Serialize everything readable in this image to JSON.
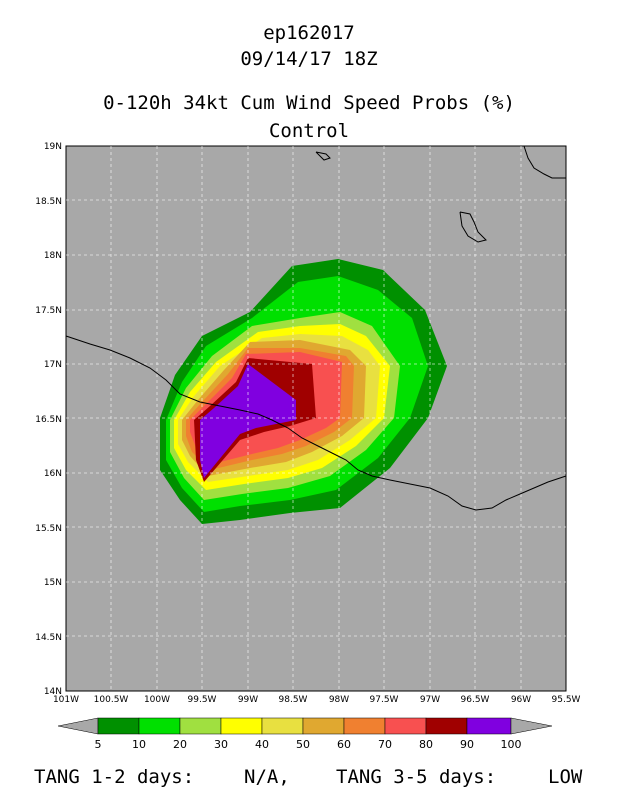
{
  "header": {
    "storm_id": "ep162017",
    "datetime": "09/14/17 18Z",
    "product": "0-120h 34kt Cum Wind Speed Probs (%)",
    "run": "Control"
  },
  "map": {
    "lat_labels": [
      "19N",
      "18.5N",
      "18N",
      "17.5N",
      "17N",
      "16.5N",
      "16N",
      "15.5N",
      "15N",
      "14.5N",
      "14N"
    ],
    "lon_labels": [
      "101W",
      "100.5W",
      "100W",
      "99.5W",
      "99W",
      "98.5W",
      "98W",
      "97.5W",
      "97W",
      "96.5W",
      "96W",
      "95.5W"
    ],
    "lat_range": [
      14,
      19
    ],
    "lon_range": [
      -101,
      -95.5
    ],
    "background_color": "#a8a8a8",
    "grid": "dashed"
  },
  "colorbar": {
    "levels": [
      "5",
      "10",
      "20",
      "30",
      "40",
      "50",
      "60",
      "70",
      "80",
      "90",
      "100"
    ],
    "colors": [
      "#009000",
      "#00e000",
      "#a0e040",
      "#ffff00",
      "#e8e040",
      "#e0a830",
      "#f08030",
      "#f85050",
      "#a00000",
      "#8000e0"
    ],
    "under_color": "#a8a8a8",
    "over_color": "#a8a8a8"
  },
  "footer": {
    "tang_1_2_label": "TANG 1-2 days:",
    "tang_1_2_value": "N/A,",
    "tang_3_5_label": "TANG 3-5 days:",
    "tang_3_5_value": "LOW"
  }
}
